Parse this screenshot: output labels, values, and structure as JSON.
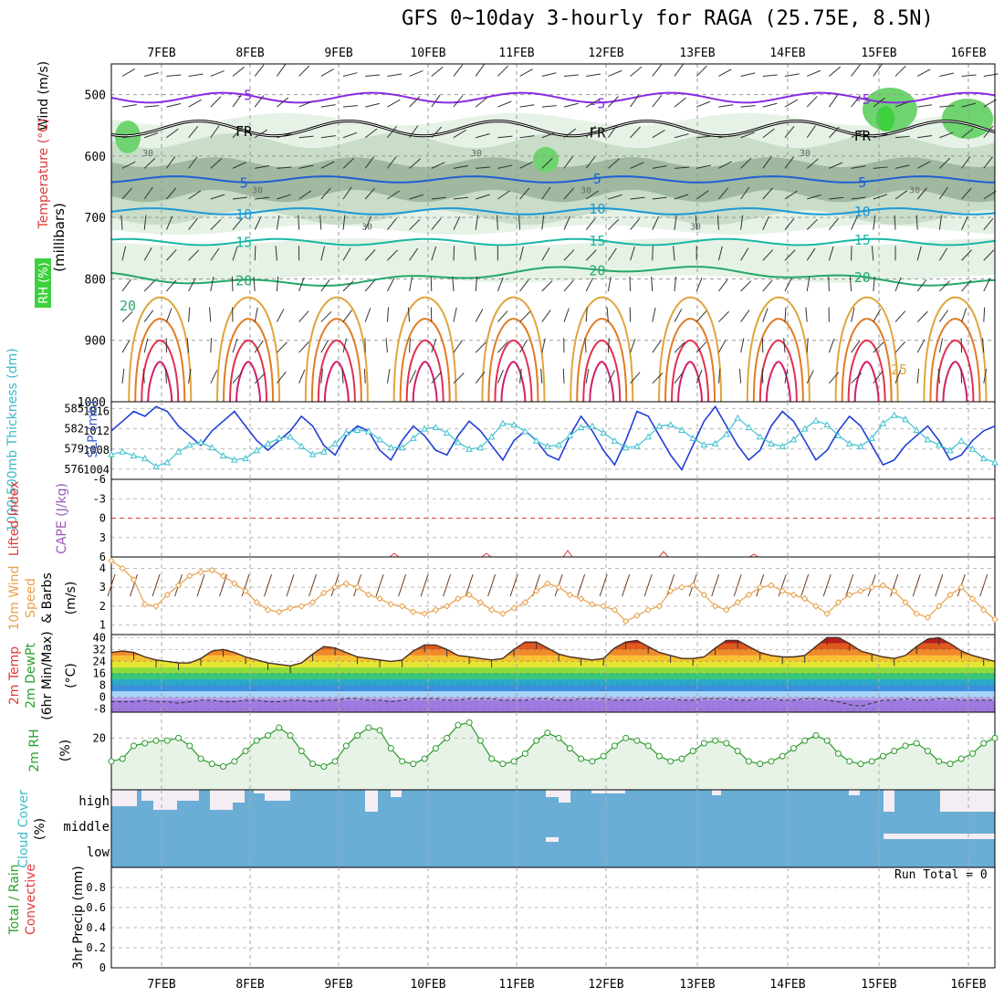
{
  "title": "GFS 0~10day 3-hourly for RAGA (25.75E, 8.5N)",
  "run_total": "Run Total = 0",
  "colors": {
    "rh_fill_light": "#e6f2e6",
    "rh_fill_mid": "#c9ddc9",
    "rh_fill_dark": "#9fb89f",
    "rh_fill_green": "#6fd36f",
    "rh_fill_bright": "#3fd03f",
    "contour_purple": "#8a2be2",
    "contour_blue": "#1f5fd6",
    "contour_lightblue": "#1a9ad6",
    "contour_teal": "#19b7a5",
    "contour_green": "#24a86a",
    "contour_gold": "#e0a43c",
    "contour_orange": "#e07b22",
    "contour_red": "#e23050",
    "contour_magenta": "#d21e6a",
    "freezing": "#000000",
    "slp": "#1f3fd6",
    "thickness": "#3fc0cf",
    "wind10": "#e8a04a",
    "rh2m": "#2a9a2a",
    "cloud_blue": "#6aaed6",
    "label_red": "#e03a3a",
    "label_green": "#2ca02c",
    "label_orange": "#e8a04a",
    "label_blue": "#3a5fcd",
    "label_cyan": "#3cb9c7",
    "label_purple": "#9b59b6"
  },
  "chart_data": [
    {
      "panel": "cross-section",
      "type": "contour",
      "x_labels": [
        "7FEB",
        "8FEB",
        "9FEB",
        "10FEB",
        "11FEB",
        "12FEB",
        "13FEB",
        "14FEB",
        "15FEB",
        "16FEB"
      ],
      "ylabel_parts": [
        "RH (%)",
        "Temperature (°C)",
        "Wind (m/s)",
        "(millibars)"
      ],
      "ylim": [
        1000,
        450
      ],
      "y_ticks": [
        "500",
        "600",
        "700",
        "800",
        "900",
        "1000"
      ],
      "temperature_contours": [
        {
          "label": "-5",
          "level": 505
        },
        {
          "label": "FR",
          "level": 555
        },
        {
          "label": "5",
          "level": 638
        },
        {
          "label": "10",
          "level": 690
        },
        {
          "label": "15",
          "level": 740
        },
        {
          "label": "20",
          "level": 795
        }
      ],
      "rh_contour_labels": [
        "30",
        "30",
        "30",
        "30",
        "30",
        "30",
        "30",
        "30"
      ],
      "low_contour_labels": [
        "20",
        "25"
      ]
    },
    {
      "panel": "slp-thickness",
      "type": "line",
      "ylabel_left": "1000-500mb Thickness (dm)",
      "ylabel_right": "SLP (mb)",
      "thickness_ticks": [
        "576",
        "579",
        "582",
        "585"
      ],
      "slp_ticks": [
        "1004",
        "1008",
        "1012",
        "1016"
      ],
      "series": [
        {
          "name": "SLP (mb)",
          "values": [
            1012,
            1014,
            1016,
            1015,
            1017,
            1016,
            1013,
            1011,
            1009,
            1012,
            1014,
            1016,
            1013,
            1010,
            1008,
            1010,
            1012,
            1015,
            1013,
            1009,
            1007,
            1011,
            1013,
            1012,
            1008,
            1006,
            1010,
            1013,
            1011,
            1008,
            1007,
            1011,
            1014,
            1012,
            1009,
            1006,
            1010,
            1012,
            1010,
            1007,
            1006,
            1011,
            1015,
            1012,
            1008,
            1005,
            1010,
            1016,
            1015,
            1011,
            1007,
            1004,
            1009,
            1014,
            1017,
            1013,
            1009,
            1006,
            1008,
            1013,
            1016,
            1014,
            1010,
            1006,
            1008,
            1012,
            1015,
            1013,
            1009,
            1005,
            1006,
            1009,
            1011,
            1013,
            1010,
            1006,
            1007,
            1010,
            1012,
            1013
          ]
        },
        {
          "name": "Thickness (dm)",
          "values": [
            578.2,
            578.6,
            578.0,
            577.6,
            576.4,
            577.0,
            578.6,
            579.6,
            580.0,
            579.2,
            578.0,
            577.4,
            577.6,
            578.8,
            579.8,
            580.6,
            580.8,
            579.4,
            578.2,
            578.6,
            579.8,
            581.4,
            581.8,
            581.6,
            580.4,
            579.2,
            579.2,
            580.6,
            582.0,
            582.2,
            581.4,
            580.0,
            579.0,
            579.2,
            580.8,
            582.8,
            582.6,
            581.6,
            580.2,
            579.4,
            579.6,
            581.0,
            582.2,
            582.4,
            581.4,
            580.2,
            579.2,
            579.4,
            580.8,
            582.4,
            582.6,
            581.8,
            580.6,
            579.6,
            579.8,
            581.2,
            583.6,
            582.2,
            580.8,
            579.8,
            579.4,
            580.4,
            582.0,
            583.2,
            582.6,
            581.0,
            579.8,
            579.4,
            580.6,
            582.8,
            584.0,
            583.4,
            581.8,
            580.4,
            579.6,
            578.8,
            580.2,
            579.0,
            577.6,
            577.0
          ]
        }
      ]
    },
    {
      "panel": "lifted-index-cape",
      "type": "line",
      "ylabel_left": "Lifted Index",
      "ylabel_right": "CAPE (J/kg)",
      "y_ticks": [
        "-6",
        "-3",
        "0",
        "3",
        "6"
      ],
      "ylim": [
        6,
        -6
      ]
    },
    {
      "panel": "wind10m",
      "type": "line",
      "ylabel_parts": [
        "10m Wind",
        "Speed",
        "& Barbs",
        "(m/s)"
      ],
      "y_ticks": [
        "1",
        "2",
        "3",
        "4"
      ],
      "ylim": [
        0.5,
        4.6
      ],
      "series": [
        {
          "name": "10m Wind Speed (m/s)",
          "values": [
            4.4,
            4.0,
            3.4,
            2.1,
            2.0,
            2.6,
            3.1,
            3.6,
            3.8,
            3.9,
            3.6,
            3.2,
            2.8,
            2.2,
            1.8,
            1.7,
            1.9,
            2.0,
            2.2,
            2.7,
            3.0,
            3.2,
            3.0,
            2.6,
            2.4,
            2.1,
            2.0,
            1.7,
            1.6,
            1.8,
            2.0,
            2.4,
            2.6,
            2.2,
            1.8,
            1.6,
            1.9,
            2.2,
            2.8,
            3.2,
            3.0,
            2.6,
            2.4,
            2.1,
            2.0,
            1.8,
            1.2,
            1.5,
            1.8,
            2.0,
            2.8,
            3.0,
            3.1,
            2.6,
            2.0,
            1.8,
            2.2,
            2.6,
            3.0,
            3.1,
            2.8,
            2.6,
            2.4,
            2.0,
            1.6,
            2.2,
            2.6,
            2.8,
            3.0,
            3.1,
            2.8,
            2.2,
            1.6,
            1.4,
            2.0,
            2.6,
            3.0,
            2.4,
            1.8,
            1.3
          ]
        }
      ]
    },
    {
      "panel": "temperature2m",
      "type": "area",
      "ylabel_parts": [
        "2m Temp",
        "2m DewPt",
        "(6hr Min/Max)",
        "(°C)"
      ],
      "y_ticks": [
        "-8",
        "0",
        "8",
        "16",
        "24",
        "32",
        "40"
      ],
      "ylim": [
        -10,
        42
      ],
      "series": [
        {
          "name": "2m Temp (°C)",
          "values": [
            30,
            31,
            30,
            27,
            25,
            24,
            23,
            23,
            26,
            31,
            32,
            30,
            27,
            25,
            23,
            22,
            21,
            23,
            29,
            34,
            33,
            30,
            27,
            26,
            25,
            24,
            25,
            31,
            35,
            35,
            32,
            28,
            27,
            26,
            25,
            26,
            32,
            37,
            37,
            33,
            29,
            27,
            26,
            25,
            26,
            33,
            37,
            38,
            34,
            30,
            28,
            26,
            26,
            27,
            33,
            38,
            38,
            34,
            30,
            28,
            27,
            27,
            28,
            34,
            40,
            40,
            36,
            31,
            29,
            27,
            26,
            28,
            34,
            39,
            40,
            36,
            31,
            28,
            26,
            24
          ]
        },
        {
          "name": "2m DewPt (°C)",
          "values": [
            -3,
            -3,
            -3,
            -2,
            -3,
            -3,
            -4,
            -3,
            -2,
            -2,
            -3,
            -3,
            -2,
            -2,
            -3,
            -3,
            -2,
            -2,
            -3,
            -2,
            -2,
            -1,
            -1,
            -2,
            -2,
            -3,
            -2,
            -1,
            -1,
            -1,
            -2,
            -2,
            -1,
            -1,
            -1,
            -2,
            -2,
            -2,
            -1,
            -1,
            -2,
            -2,
            -1,
            -1,
            -1,
            -2,
            -2,
            -2,
            -1,
            -1,
            -1,
            -2,
            -2,
            -1,
            -1,
            -1,
            -2,
            -2,
            -1,
            -1,
            -2,
            -2,
            -1,
            -1,
            -2,
            -3,
            -5,
            -6,
            -4,
            -2,
            -2,
            -1,
            -2,
            -2,
            -1,
            -1,
            -2,
            -2,
            -2,
            -2
          ]
        }
      ]
    },
    {
      "panel": "rh2m",
      "type": "area",
      "ylabel_parts": [
        "2m RH",
        "(%)"
      ],
      "y_ticks": [
        "20"
      ],
      "ylim": [
        0,
        30
      ],
      "series": [
        {
          "name": "2m RH (%)",
          "values": [
            11,
            12,
            17,
            18,
            19,
            19,
            20,
            17,
            12,
            10,
            9,
            11,
            15,
            19,
            21,
            24,
            21,
            15,
            10,
            9,
            11,
            17,
            21,
            24,
            23,
            16,
            11,
            10,
            12,
            16,
            20,
            25,
            26,
            19,
            12,
            10,
            11,
            14,
            19,
            22,
            20,
            16,
            12,
            11,
            13,
            17,
            20,
            19,
            17,
            13,
            11,
            12,
            15,
            18,
            19,
            18,
            15,
            11,
            10,
            11,
            13,
            16,
            19,
            21,
            19,
            14,
            11,
            10,
            11,
            13,
            15,
            17,
            18,
            15,
            11,
            10,
            12,
            14,
            18,
            20
          ]
        }
      ]
    },
    {
      "panel": "cloud-cover",
      "type": "bar",
      "ylabel_parts": [
        "Cloud Cover",
        "(%)"
      ],
      "row_labels": [
        "high",
        "middle",
        "low"
      ]
    },
    {
      "panel": "precip3hr",
      "type": "bar",
      "ylabel_parts": [
        "Total / Rain",
        "Convective",
        "3hr Precip (mm)"
      ],
      "y_ticks": [
        "0",
        "0.2",
        "0.4",
        "0.6",
        "0.8"
      ],
      "ylim": [
        0,
        1.0
      ],
      "x_labels": [
        "7FEB",
        "8FEB",
        "9FEB",
        "10FEB",
        "11FEB",
        "12FEB",
        "13FEB",
        "14FEB",
        "15FEB",
        "16FEB"
      ],
      "values": []
    }
  ]
}
